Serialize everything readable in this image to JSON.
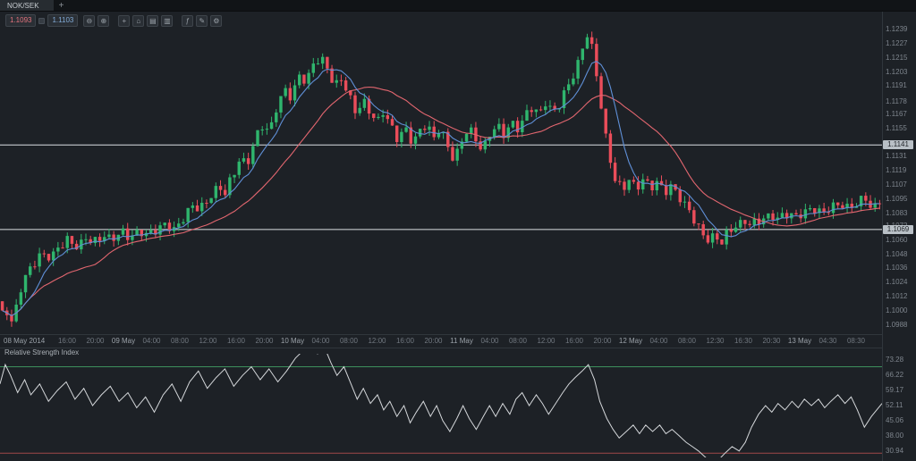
{
  "window": {
    "tab_label": "NOK/SEK",
    "new_tab_label": "+"
  },
  "toolbar": {
    "bid": "1.1093",
    "ask": "1.1103",
    "icons": [
      {
        "name": "zoom-out-icon",
        "glyph": "⊖"
      },
      {
        "name": "zoom-in-icon",
        "glyph": "⊕"
      },
      {
        "name": "crosshair-icon",
        "glyph": "+",
        "gap": true
      },
      {
        "name": "pan-home-icon",
        "glyph": "⌂"
      },
      {
        "name": "chart-type-icon",
        "glyph": "▤"
      },
      {
        "name": "timeframe-icon",
        "glyph": "▥"
      },
      {
        "name": "indicators-icon",
        "glyph": "ƒ",
        "gap": true
      },
      {
        "name": "drawing-tools-icon",
        "glyph": "✎"
      },
      {
        "name": "chart-settings-icon",
        "glyph": "⚙"
      }
    ]
  },
  "chart_data": {
    "type": "candlestick",
    "symbol": "NOK/SEK",
    "price_axis": {
      "min": 1.098,
      "max": 1.1243,
      "ticks": [
        "1.1239",
        "1.1227",
        "1.1215",
        "1.1203",
        "1.1191",
        "1.1178",
        "1.1167",
        "1.1155",
        "1.1131",
        "1.1119",
        "1.1107",
        "1.1095",
        "1.1083",
        "1.1072",
        "1.1060",
        "1.1048",
        "1.1036",
        "1.1024",
        "1.1012",
        "1.1000",
        "1.0988"
      ]
    },
    "levels": [
      {
        "value": 1.1141,
        "label": "1.1141"
      },
      {
        "value": 1.1069,
        "label": "1.1069"
      }
    ],
    "time_axis": {
      "labels": [
        "08 May 2014",
        "16:00",
        "20:00",
        "09 May",
        "04:00",
        "08:00",
        "12:00",
        "16:00",
        "20:00",
        "10 May",
        "04:00",
        "08:00",
        "12:00",
        "16:00",
        "20:00",
        "11 May",
        "04:00",
        "08:00",
        "12:00",
        "16:00",
        "20:00",
        "12 May",
        "04:00",
        "08:00",
        "12:30",
        "16:30",
        "20:30",
        "13 May",
        "04:30",
        "08:30"
      ]
    },
    "colors": {
      "bull": "#2fb56d",
      "bear": "#ea4d5a",
      "ma_fast": "#5f8fd6",
      "ma_slow": "#e2666f",
      "level": "#dbdfe3",
      "rsi": "#d4d7da",
      "rsi_high": "#3d8f5c",
      "rsi_low": "#a04848"
    },
    "ma": {
      "fast": 7,
      "slow": 21
    },
    "candles": {
      "count": 190,
      "noise": 0.00045,
      "wick_vol": 0.0005,
      "anchors": [
        [
          0.0,
          1.1008
        ],
        [
          0.006,
          1.0996
        ],
        [
          0.01,
          1.1002
        ],
        [
          0.014,
          1.0986
        ],
        [
          0.02,
          1.0999
        ],
        [
          0.026,
          1.1018
        ],
        [
          0.032,
          1.103
        ],
        [
          0.04,
          1.104
        ],
        [
          0.05,
          1.1048
        ],
        [
          0.06,
          1.1045
        ],
        [
          0.07,
          1.1055
        ],
        [
          0.08,
          1.106
        ],
        [
          0.09,
          1.1054
        ],
        [
          0.1,
          1.1062
        ],
        [
          0.11,
          1.1058
        ],
        [
          0.12,
          1.1064
        ],
        [
          0.13,
          1.1061
        ],
        [
          0.14,
          1.1067
        ],
        [
          0.15,
          1.1062
        ],
        [
          0.16,
          1.1068
        ],
        [
          0.17,
          1.1064
        ],
        [
          0.18,
          1.1069
        ],
        [
          0.19,
          1.1074
        ],
        [
          0.2,
          1.1068
        ],
        [
          0.21,
          1.1078
        ],
        [
          0.22,
          1.109
        ],
        [
          0.23,
          1.1086
        ],
        [
          0.24,
          1.1096
        ],
        [
          0.25,
          1.1106
        ],
        [
          0.258,
          1.11
        ],
        [
          0.266,
          1.1114
        ],
        [
          0.275,
          1.113
        ],
        [
          0.283,
          1.1124
        ],
        [
          0.291,
          1.1144
        ],
        [
          0.3,
          1.1158
        ],
        [
          0.308,
          1.1152
        ],
        [
          0.316,
          1.1172
        ],
        [
          0.325,
          1.1188
        ],
        [
          0.333,
          1.1182
        ],
        [
          0.342,
          1.12
        ],
        [
          0.35,
          1.1194
        ],
        [
          0.358,
          1.121
        ],
        [
          0.366,
          1.1216
        ],
        [
          0.374,
          1.1206
        ],
        [
          0.382,
          1.119
        ],
        [
          0.39,
          1.1198
        ],
        [
          0.398,
          1.1184
        ],
        [
          0.406,
          1.1168
        ],
        [
          0.414,
          1.1178
        ],
        [
          0.422,
          1.117
        ],
        [
          0.43,
          1.116
        ],
        [
          0.438,
          1.117
        ],
        [
          0.446,
          1.1156
        ],
        [
          0.454,
          1.1146
        ],
        [
          0.462,
          1.1156
        ],
        [
          0.47,
          1.1142
        ],
        [
          0.478,
          1.1152
        ],
        [
          0.486,
          1.116
        ],
        [
          0.494,
          1.1146
        ],
        [
          0.502,
          1.1156
        ],
        [
          0.51,
          1.114
        ],
        [
          0.518,
          1.1128
        ],
        [
          0.526,
          1.1144
        ],
        [
          0.534,
          1.1156
        ],
        [
          0.542,
          1.1146
        ],
        [
          0.55,
          1.1136
        ],
        [
          0.558,
          1.115
        ],
        [
          0.566,
          1.1158
        ],
        [
          0.574,
          1.115
        ],
        [
          0.582,
          1.116
        ],
        [
          0.59,
          1.1154
        ],
        [
          0.598,
          1.1166
        ],
        [
          0.606,
          1.1174
        ],
        [
          0.614,
          1.1166
        ],
        [
          0.622,
          1.1178
        ],
        [
          0.63,
          1.1168
        ],
        [
          0.638,
          1.1178
        ],
        [
          0.646,
          1.119
        ],
        [
          0.654,
          1.1202
        ],
        [
          0.662,
          1.122
        ],
        [
          0.668,
          1.1237
        ],
        [
          0.674,
          1.1222
        ],
        [
          0.68,
          1.1196
        ],
        [
          0.686,
          1.1164
        ],
        [
          0.692,
          1.1136
        ],
        [
          0.7,
          1.1112
        ],
        [
          0.708,
          1.1102
        ],
        [
          0.716,
          1.1112
        ],
        [
          0.724,
          1.1104
        ],
        [
          0.732,
          1.1112
        ],
        [
          0.74,
          1.1104
        ],
        [
          0.748,
          1.111
        ],
        [
          0.756,
          1.1101
        ],
        [
          0.764,
          1.1106
        ],
        [
          0.772,
          1.1097
        ],
        [
          0.78,
          1.109
        ],
        [
          0.788,
          1.108
        ],
        [
          0.796,
          1.1068
        ],
        [
          0.804,
          1.106
        ],
        [
          0.812,
          1.1064
        ],
        [
          0.82,
          1.1058
        ],
        [
          0.828,
          1.1066
        ],
        [
          0.836,
          1.1072
        ],
        [
          0.846,
          1.1076
        ],
        [
          0.856,
          1.1073
        ],
        [
          0.866,
          1.1078
        ],
        [
          0.876,
          1.1081
        ],
        [
          0.886,
          1.1078
        ],
        [
          0.896,
          1.1083
        ],
        [
          0.906,
          1.108
        ],
        [
          0.916,
          1.1084
        ],
        [
          0.926,
          1.1087
        ],
        [
          0.936,
          1.1083
        ],
        [
          0.946,
          1.1088
        ],
        [
          0.956,
          1.1091
        ],
        [
          0.966,
          1.1087
        ],
        [
          0.976,
          1.1092
        ],
        [
          0.984,
          1.1096
        ],
        [
          0.992,
          1.1086
        ],
        [
          1.0,
          1.1093
        ]
      ]
    },
    "rsi": {
      "title": "Relative Strength Index",
      "levels": [
        70,
        30
      ],
      "axis": {
        "min": 28,
        "max": 76,
        "ticks": [
          "73.28",
          "66.22",
          "59.17",
          "52.11",
          "45.06",
          "38.00",
          "30.94"
        ]
      },
      "points": [
        [
          0.0,
          62
        ],
        [
          0.006,
          71
        ],
        [
          0.012,
          66
        ],
        [
          0.02,
          58
        ],
        [
          0.028,
          64
        ],
        [
          0.035,
          57
        ],
        [
          0.045,
          62
        ],
        [
          0.055,
          54
        ],
        [
          0.065,
          59
        ],
        [
          0.075,
          63
        ],
        [
          0.085,
          55
        ],
        [
          0.095,
          60
        ],
        [
          0.105,
          52
        ],
        [
          0.115,
          57
        ],
        [
          0.125,
          61
        ],
        [
          0.135,
          54
        ],
        [
          0.145,
          58
        ],
        [
          0.155,
          51
        ],
        [
          0.165,
          56
        ],
        [
          0.175,
          49
        ],
        [
          0.185,
          57
        ],
        [
          0.195,
          62
        ],
        [
          0.205,
          54
        ],
        [
          0.215,
          63
        ],
        [
          0.225,
          68
        ],
        [
          0.235,
          60
        ],
        [
          0.245,
          65
        ],
        [
          0.255,
          69
        ],
        [
          0.265,
          61
        ],
        [
          0.275,
          66
        ],
        [
          0.285,
          70
        ],
        [
          0.295,
          64
        ],
        [
          0.305,
          69
        ],
        [
          0.315,
          63
        ],
        [
          0.325,
          68
        ],
        [
          0.335,
          74
        ],
        [
          0.345,
          78
        ],
        [
          0.352,
          80
        ],
        [
          0.36,
          76
        ],
        [
          0.368,
          79
        ],
        [
          0.375,
          72
        ],
        [
          0.382,
          66
        ],
        [
          0.39,
          70
        ],
        [
          0.398,
          62
        ],
        [
          0.405,
          55
        ],
        [
          0.412,
          60
        ],
        [
          0.42,
          53
        ],
        [
          0.428,
          57
        ],
        [
          0.435,
          50
        ],
        [
          0.442,
          54
        ],
        [
          0.45,
          47
        ],
        [
          0.458,
          52
        ],
        [
          0.465,
          44
        ],
        [
          0.472,
          49
        ],
        [
          0.48,
          54
        ],
        [
          0.488,
          47
        ],
        [
          0.495,
          52
        ],
        [
          0.502,
          45
        ],
        [
          0.51,
          40
        ],
        [
          0.518,
          46
        ],
        [
          0.525,
          52
        ],
        [
          0.532,
          46
        ],
        [
          0.54,
          41
        ],
        [
          0.548,
          47
        ],
        [
          0.555,
          52
        ],
        [
          0.562,
          47
        ],
        [
          0.57,
          53
        ],
        [
          0.578,
          48
        ],
        [
          0.585,
          55
        ],
        [
          0.592,
          58
        ],
        [
          0.6,
          52
        ],
        [
          0.608,
          57
        ],
        [
          0.615,
          53
        ],
        [
          0.622,
          48
        ],
        [
          0.63,
          53
        ],
        [
          0.638,
          58
        ],
        [
          0.645,
          62
        ],
        [
          0.652,
          65
        ],
        [
          0.66,
          68
        ],
        [
          0.667,
          71
        ],
        [
          0.674,
          64
        ],
        [
          0.68,
          54
        ],
        [
          0.688,
          46
        ],
        [
          0.695,
          41
        ],
        [
          0.702,
          37
        ],
        [
          0.71,
          40
        ],
        [
          0.718,
          43
        ],
        [
          0.725,
          39
        ],
        [
          0.732,
          43
        ],
        [
          0.74,
          40
        ],
        [
          0.748,
          43
        ],
        [
          0.755,
          39
        ],
        [
          0.762,
          41
        ],
        [
          0.77,
          38
        ],
        [
          0.778,
          35
        ],
        [
          0.785,
          33
        ],
        [
          0.792,
          31
        ],
        [
          0.8,
          28
        ],
        [
          0.808,
          26
        ],
        [
          0.815,
          27
        ],
        [
          0.822,
          30
        ],
        [
          0.83,
          33
        ],
        [
          0.838,
          31
        ],
        [
          0.845,
          35
        ],
        [
          0.852,
          42
        ],
        [
          0.86,
          48
        ],
        [
          0.868,
          52
        ],
        [
          0.875,
          49
        ],
        [
          0.882,
          53
        ],
        [
          0.89,
          50
        ],
        [
          0.898,
          54
        ],
        [
          0.905,
          51
        ],
        [
          0.912,
          55
        ],
        [
          0.92,
          52
        ],
        [
          0.928,
          55
        ],
        [
          0.935,
          51
        ],
        [
          0.942,
          54
        ],
        [
          0.95,
          57
        ],
        [
          0.958,
          53
        ],
        [
          0.965,
          56
        ],
        [
          0.972,
          50
        ],
        [
          0.98,
          42
        ],
        [
          0.988,
          47
        ],
        [
          1.0,
          53
        ]
      ]
    }
  }
}
